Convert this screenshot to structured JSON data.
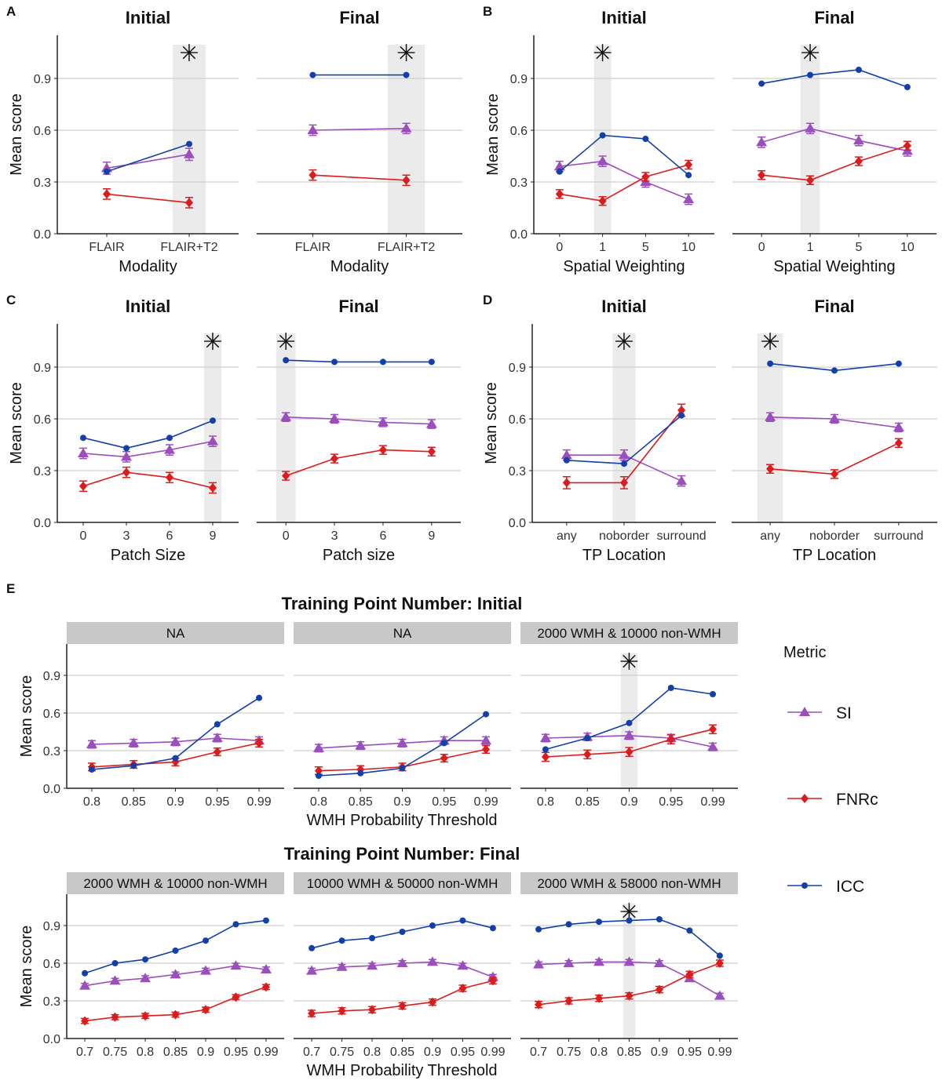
{
  "legend": {
    "title": "Metric",
    "entries": [
      {
        "name": "SI",
        "color": "#9b4fbd",
        "shape": "triangle"
      },
      {
        "name": "FNRc",
        "color": "#dc1c1c",
        "shape": "diamond"
      },
      {
        "name": "ICC",
        "color": "#1240a8",
        "shape": "circle"
      }
    ]
  },
  "significance_marker": "✳",
  "group_titles": {
    "E_initial": "Training Point Number: Initial",
    "E_final": "Training Point Number: Final",
    "E_xlabel": "WMH Probability Threshold"
  },
  "chart_data": [
    {
      "panel_label": "A",
      "title": "Initial",
      "type": "line",
      "xlabel": "Modality",
      "ylabel": "Mean score",
      "ylim": [
        0,
        1.15
      ],
      "yticks": [
        "0.0",
        "0.3",
        "0.6",
        "0.9"
      ],
      "grid": true,
      "categories": [
        "FLAIR",
        "FLAIR+T2"
      ],
      "highlight": "FLAIR+T2",
      "series": [
        {
          "name": "SI",
          "values": [
            0.38,
            0.46
          ],
          "error": 0.035
        },
        {
          "name": "FNRc",
          "values": [
            0.23,
            0.18
          ],
          "error": 0.03
        },
        {
          "name": "ICC",
          "values": [
            0.36,
            0.52
          ]
        }
      ]
    },
    {
      "panel_label": "",
      "title": "Final",
      "type": "line",
      "xlabel": "Modality",
      "ylabel": "",
      "ylim": [
        0,
        1.15
      ],
      "grid": true,
      "categories": [
        "FLAIR",
        "FLAIR+T2"
      ],
      "highlight": "FLAIR+T2",
      "series": [
        {
          "name": "SI",
          "values": [
            0.6,
            0.61
          ],
          "error": 0.03
        },
        {
          "name": "FNRc",
          "values": [
            0.34,
            0.31
          ],
          "error": 0.03
        },
        {
          "name": "ICC",
          "values": [
            0.92,
            0.92
          ]
        }
      ]
    },
    {
      "panel_label": "B",
      "title": "Initial",
      "type": "line",
      "xlabel": "Spatial Weighting",
      "ylabel": "Mean score",
      "ylim": [
        0,
        1.15
      ],
      "yticks": [
        "0.0",
        "0.3",
        "0.6",
        "0.9"
      ],
      "grid": true,
      "categories": [
        "0",
        "1",
        "5",
        "10"
      ],
      "highlight": "1",
      "series": [
        {
          "name": "SI",
          "values": [
            0.39,
            0.42,
            0.3,
            0.2
          ],
          "error": 0.03
        },
        {
          "name": "FNRc",
          "values": [
            0.23,
            0.19,
            0.33,
            0.4
          ],
          "error": 0.025
        },
        {
          "name": "ICC",
          "values": [
            0.36,
            0.57,
            0.55,
            0.34
          ]
        }
      ]
    },
    {
      "panel_label": "",
      "title": "Final",
      "type": "line",
      "xlabel": "Spatial Weighting",
      "ylabel": "",
      "ylim": [
        0,
        1.15
      ],
      "grid": true,
      "categories": [
        "0",
        "1",
        "5",
        "10"
      ],
      "highlight": "1",
      "series": [
        {
          "name": "SI",
          "values": [
            0.53,
            0.61,
            0.54,
            0.48
          ],
          "error": 0.03
        },
        {
          "name": "FNRc",
          "values": [
            0.34,
            0.31,
            0.42,
            0.51
          ],
          "error": 0.025
        },
        {
          "name": "ICC",
          "values": [
            0.87,
            0.92,
            0.95,
            0.85
          ]
        }
      ]
    },
    {
      "panel_label": "C",
      "title": "Initial",
      "type": "line",
      "xlabel": "Patch Size",
      "ylabel": "Mean score",
      "ylim": [
        0,
        1.15
      ],
      "yticks": [
        "0.0",
        "0.3",
        "0.6",
        "0.9"
      ],
      "grid": true,
      "categories": [
        "0",
        "3",
        "6",
        "9"
      ],
      "highlight": "9",
      "series": [
        {
          "name": "SI",
          "values": [
            0.4,
            0.38,
            0.42,
            0.47
          ],
          "error": 0.03
        },
        {
          "name": "FNRc",
          "values": [
            0.21,
            0.29,
            0.26,
            0.2
          ],
          "error": 0.03
        },
        {
          "name": "ICC",
          "values": [
            0.49,
            0.43,
            0.49,
            0.59
          ]
        }
      ]
    },
    {
      "panel_label": "",
      "title": "Final",
      "type": "line",
      "xlabel": "Patch size",
      "ylabel": "",
      "ylim": [
        0,
        1.15
      ],
      "grid": true,
      "categories": [
        "0",
        "3",
        "6",
        "9"
      ],
      "highlight": "0",
      "series": [
        {
          "name": "SI",
          "values": [
            0.61,
            0.6,
            0.58,
            0.57
          ],
          "error": 0.025
        },
        {
          "name": "FNRc",
          "values": [
            0.27,
            0.37,
            0.42,
            0.41
          ],
          "error": 0.025
        },
        {
          "name": "ICC",
          "values": [
            0.94,
            0.93,
            0.93,
            0.93
          ]
        }
      ]
    },
    {
      "panel_label": "D",
      "title": "Initial",
      "type": "line",
      "xlabel": "TP Location",
      "ylabel": "Mean score",
      "ylim": [
        0,
        1.15
      ],
      "yticks": [
        "0.0",
        "0.3",
        "0.6",
        "0.9"
      ],
      "grid": true,
      "categories": [
        "any",
        "noborder",
        "surround"
      ],
      "highlight": "noborder",
      "series": [
        {
          "name": "SI",
          "values": [
            0.39,
            0.39,
            0.24
          ],
          "error": 0.03
        },
        {
          "name": "FNRc",
          "values": [
            0.23,
            0.23,
            0.65
          ],
          "error": 0.035
        },
        {
          "name": "ICC",
          "values": [
            0.36,
            0.34,
            0.62
          ]
        }
      ]
    },
    {
      "panel_label": "",
      "title": "Final",
      "type": "line",
      "xlabel": "TP Location",
      "ylabel": "",
      "ylim": [
        0,
        1.15
      ],
      "grid": true,
      "categories": [
        "any",
        "noborder",
        "surround"
      ],
      "highlight": "any",
      "series": [
        {
          "name": "SI",
          "values": [
            0.61,
            0.6,
            0.55
          ],
          "error": 0.025
        },
        {
          "name": "FNRc",
          "values": [
            0.31,
            0.28,
            0.46
          ],
          "error": 0.025
        },
        {
          "name": "ICC",
          "values": [
            0.92,
            0.88,
            0.92
          ]
        }
      ]
    },
    {
      "panel_label": "E",
      "title": "NA",
      "type": "line",
      "ylabel": "Mean score",
      "ylim": [
        0,
        1.15
      ],
      "yticks": [
        "0.0",
        "0.3",
        "0.6",
        "0.9"
      ],
      "grid": true,
      "categories": [
        "0.8",
        "0.85",
        "0.9",
        "0.95",
        "0.99"
      ],
      "highlight": null,
      "series": [
        {
          "name": "SI",
          "values": [
            0.35,
            0.36,
            0.37,
            0.4,
            0.38
          ],
          "error": 0.03
        },
        {
          "name": "FNRc",
          "values": [
            0.17,
            0.19,
            0.21,
            0.29,
            0.36
          ],
          "error": 0.03
        },
        {
          "name": "ICC",
          "values": [
            0.15,
            0.18,
            0.24,
            0.51,
            0.72
          ]
        }
      ]
    },
    {
      "panel_label": "",
      "title": "NA",
      "type": "line",
      "ylabel": "",
      "ylim": [
        0,
        1.15
      ],
      "grid": true,
      "categories": [
        "0.8",
        "0.85",
        "0.9",
        "0.95",
        "0.99"
      ],
      "highlight": null,
      "series": [
        {
          "name": "SI",
          "values": [
            0.32,
            0.34,
            0.36,
            0.38,
            0.38
          ],
          "error": 0.03
        },
        {
          "name": "FNRc",
          "values": [
            0.14,
            0.15,
            0.17,
            0.24,
            0.31
          ],
          "error": 0.03
        },
        {
          "name": "ICC",
          "values": [
            0.1,
            0.12,
            0.16,
            0.36,
            0.59
          ]
        }
      ]
    },
    {
      "panel_label": "",
      "title": "2000 WMH & 10000 non-WMH",
      "type": "line",
      "ylabel": "",
      "ylim": [
        0,
        1.15
      ],
      "grid": true,
      "categories": [
        "0.8",
        "0.85",
        "0.9",
        "0.95",
        "0.99"
      ],
      "highlight": "0.9",
      "series": [
        {
          "name": "SI",
          "values": [
            0.4,
            0.41,
            0.42,
            0.4,
            0.33
          ],
          "error": 0.03
        },
        {
          "name": "FNRc",
          "values": [
            0.25,
            0.27,
            0.29,
            0.39,
            0.47
          ],
          "error": 0.035
        },
        {
          "name": "ICC",
          "values": [
            0.31,
            0.4,
            0.52,
            0.8,
            0.75
          ]
        }
      ]
    },
    {
      "panel_label": "",
      "title": "2000 WMH & 10000 non-WMH",
      "type": "line",
      "ylabel": "Mean score",
      "ylim": [
        0,
        1.15
      ],
      "yticks": [
        "0.0",
        "0.3",
        "0.6",
        "0.9"
      ],
      "grid": true,
      "categories": [
        "0.7",
        "0.75",
        "0.8",
        "0.85",
        "0.9",
        "0.95",
        "0.99"
      ],
      "highlight": null,
      "series": [
        {
          "name": "SI",
          "values": [
            0.42,
            0.46,
            0.48,
            0.51,
            0.54,
            0.58,
            0.55
          ],
          "error": 0.02
        },
        {
          "name": "FNRc",
          "values": [
            0.14,
            0.17,
            0.18,
            0.19,
            0.23,
            0.33,
            0.41
          ],
          "error": 0.02
        },
        {
          "name": "ICC",
          "values": [
            0.52,
            0.6,
            0.63,
            0.7,
            0.78,
            0.91,
            0.94
          ]
        }
      ]
    },
    {
      "panel_label": "",
      "title": "10000 WMH & 50000 non-WMH",
      "type": "line",
      "ylabel": "",
      "ylim": [
        0,
        1.15
      ],
      "grid": true,
      "categories": [
        "0.7",
        "0.75",
        "0.8",
        "0.85",
        "0.9",
        "0.95",
        "0.99"
      ],
      "highlight": null,
      "series": [
        {
          "name": "SI",
          "values": [
            0.54,
            0.57,
            0.58,
            0.6,
            0.61,
            0.58,
            0.49
          ],
          "error": 0.02
        },
        {
          "name": "FNRc",
          "values": [
            0.2,
            0.22,
            0.23,
            0.26,
            0.29,
            0.4,
            0.46
          ],
          "error": 0.025
        },
        {
          "name": "ICC",
          "values": [
            0.72,
            0.78,
            0.8,
            0.85,
            0.9,
            0.94,
            0.88
          ]
        }
      ]
    },
    {
      "panel_label": "",
      "title": "2000 WMH & 58000 non-WMH",
      "type": "line",
      "ylabel": "",
      "ylim": [
        0,
        1.15
      ],
      "grid": true,
      "categories": [
        "0.7",
        "0.75",
        "0.8",
        "0.85",
        "0.9",
        "0.95",
        "0.99"
      ],
      "highlight": "0.85",
      "series": [
        {
          "name": "SI",
          "values": [
            0.59,
            0.6,
            0.61,
            0.61,
            0.6,
            0.48,
            0.34
          ],
          "error": 0.02
        },
        {
          "name": "FNRc",
          "values": [
            0.27,
            0.3,
            0.32,
            0.34,
            0.39,
            0.51,
            0.6
          ],
          "error": 0.025
        },
        {
          "name": "ICC",
          "values": [
            0.87,
            0.91,
            0.93,
            0.94,
            0.95,
            0.86,
            0.66
          ]
        }
      ]
    }
  ]
}
